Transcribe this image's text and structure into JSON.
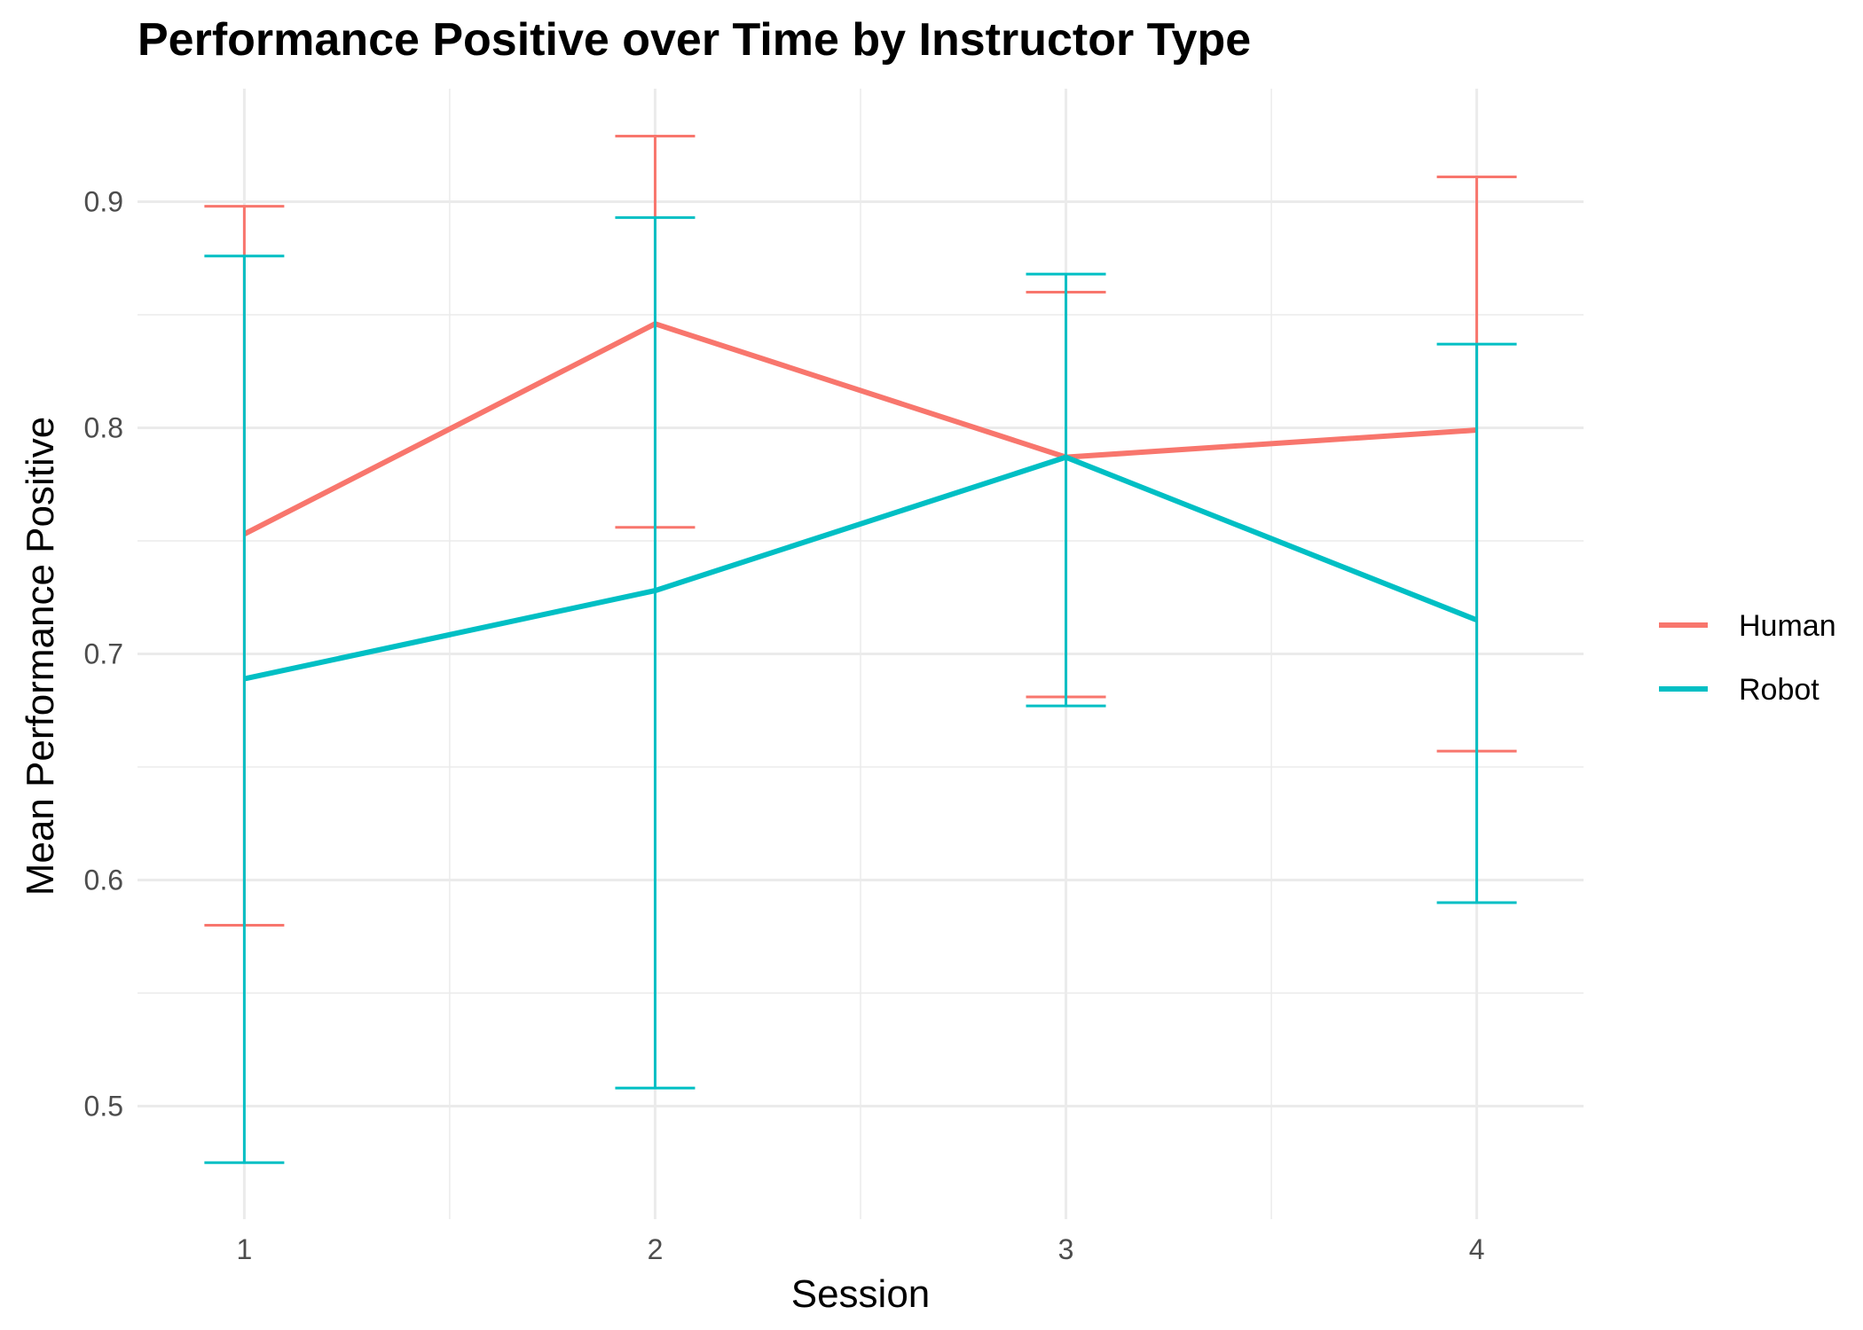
{
  "chart_data": {
    "type": "line",
    "title": "Performance Positive over Time by Instructor Type",
    "xlabel": "Session",
    "ylabel": "Mean Performance Positive",
    "x": [
      1,
      2,
      3,
      4
    ],
    "x_tick_labels": [
      "1",
      "2",
      "3",
      "4"
    ],
    "xlim": [
      0.74,
      4.26
    ],
    "ylim": [
      0.45,
      0.95
    ],
    "y_ticks": [
      0.5,
      0.6,
      0.7,
      0.8,
      0.9
    ],
    "y_tick_labels": [
      "0.5",
      "0.6",
      "0.7",
      "0.8",
      "0.9"
    ],
    "grid": true,
    "legend_position": "right",
    "series": [
      {
        "name": "Human",
        "color": "#F8766D",
        "values": [
          0.753,
          0.846,
          0.787,
          0.799
        ],
        "error_lower": [
          0.58,
          0.756,
          0.681,
          0.657
        ],
        "error_upper": [
          0.898,
          0.929,
          0.86,
          0.911
        ]
      },
      {
        "name": "Robot",
        "color": "#00BFC4",
        "values": [
          0.689,
          0.728,
          0.787,
          0.715
        ],
        "error_lower": [
          0.475,
          0.508,
          0.677,
          0.59
        ],
        "error_upper": [
          0.876,
          0.893,
          0.868,
          0.837
        ]
      }
    ]
  }
}
